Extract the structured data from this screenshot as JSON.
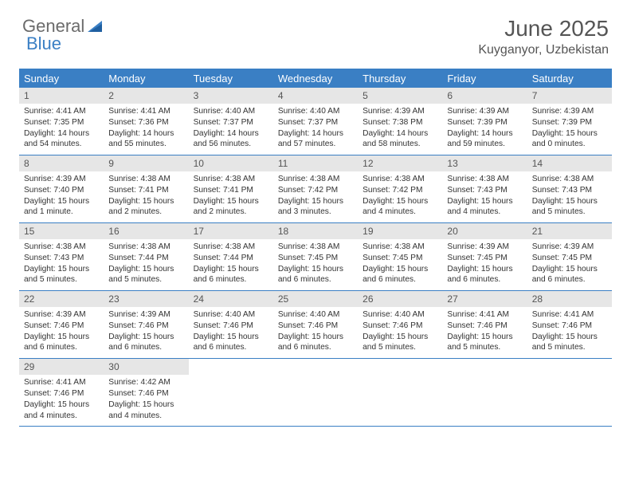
{
  "logo": {
    "text1": "General",
    "text2": "Blue",
    "accent": "#3a7fc4",
    "gray": "#6b6b6b"
  },
  "title": "June 2025",
  "location": "Kuyganyor, Uzbekistan",
  "colors": {
    "header_bg": "#3a7fc4",
    "daynum_bg": "#e6e6e6",
    "border": "#3a7fc4"
  },
  "day_names": [
    "Sunday",
    "Monday",
    "Tuesday",
    "Wednesday",
    "Thursday",
    "Friday",
    "Saturday"
  ],
  "weeks": [
    [
      {
        "n": "1",
        "sr": "Sunrise: 4:41 AM",
        "ss": "Sunset: 7:35 PM",
        "dl": "Daylight: 14 hours and 54 minutes."
      },
      {
        "n": "2",
        "sr": "Sunrise: 4:41 AM",
        "ss": "Sunset: 7:36 PM",
        "dl": "Daylight: 14 hours and 55 minutes."
      },
      {
        "n": "3",
        "sr": "Sunrise: 4:40 AM",
        "ss": "Sunset: 7:37 PM",
        "dl": "Daylight: 14 hours and 56 minutes."
      },
      {
        "n": "4",
        "sr": "Sunrise: 4:40 AM",
        "ss": "Sunset: 7:37 PM",
        "dl": "Daylight: 14 hours and 57 minutes."
      },
      {
        "n": "5",
        "sr": "Sunrise: 4:39 AM",
        "ss": "Sunset: 7:38 PM",
        "dl": "Daylight: 14 hours and 58 minutes."
      },
      {
        "n": "6",
        "sr": "Sunrise: 4:39 AM",
        "ss": "Sunset: 7:39 PM",
        "dl": "Daylight: 14 hours and 59 minutes."
      },
      {
        "n": "7",
        "sr": "Sunrise: 4:39 AM",
        "ss": "Sunset: 7:39 PM",
        "dl": "Daylight: 15 hours and 0 minutes."
      }
    ],
    [
      {
        "n": "8",
        "sr": "Sunrise: 4:39 AM",
        "ss": "Sunset: 7:40 PM",
        "dl": "Daylight: 15 hours and 1 minute."
      },
      {
        "n": "9",
        "sr": "Sunrise: 4:38 AM",
        "ss": "Sunset: 7:41 PM",
        "dl": "Daylight: 15 hours and 2 minutes."
      },
      {
        "n": "10",
        "sr": "Sunrise: 4:38 AM",
        "ss": "Sunset: 7:41 PM",
        "dl": "Daylight: 15 hours and 2 minutes."
      },
      {
        "n": "11",
        "sr": "Sunrise: 4:38 AM",
        "ss": "Sunset: 7:42 PM",
        "dl": "Daylight: 15 hours and 3 minutes."
      },
      {
        "n": "12",
        "sr": "Sunrise: 4:38 AM",
        "ss": "Sunset: 7:42 PM",
        "dl": "Daylight: 15 hours and 4 minutes."
      },
      {
        "n": "13",
        "sr": "Sunrise: 4:38 AM",
        "ss": "Sunset: 7:43 PM",
        "dl": "Daylight: 15 hours and 4 minutes."
      },
      {
        "n": "14",
        "sr": "Sunrise: 4:38 AM",
        "ss": "Sunset: 7:43 PM",
        "dl": "Daylight: 15 hours and 5 minutes."
      }
    ],
    [
      {
        "n": "15",
        "sr": "Sunrise: 4:38 AM",
        "ss": "Sunset: 7:43 PM",
        "dl": "Daylight: 15 hours and 5 minutes."
      },
      {
        "n": "16",
        "sr": "Sunrise: 4:38 AM",
        "ss": "Sunset: 7:44 PM",
        "dl": "Daylight: 15 hours and 5 minutes."
      },
      {
        "n": "17",
        "sr": "Sunrise: 4:38 AM",
        "ss": "Sunset: 7:44 PM",
        "dl": "Daylight: 15 hours and 6 minutes."
      },
      {
        "n": "18",
        "sr": "Sunrise: 4:38 AM",
        "ss": "Sunset: 7:45 PM",
        "dl": "Daylight: 15 hours and 6 minutes."
      },
      {
        "n": "19",
        "sr": "Sunrise: 4:38 AM",
        "ss": "Sunset: 7:45 PM",
        "dl": "Daylight: 15 hours and 6 minutes."
      },
      {
        "n": "20",
        "sr": "Sunrise: 4:39 AM",
        "ss": "Sunset: 7:45 PM",
        "dl": "Daylight: 15 hours and 6 minutes."
      },
      {
        "n": "21",
        "sr": "Sunrise: 4:39 AM",
        "ss": "Sunset: 7:45 PM",
        "dl": "Daylight: 15 hours and 6 minutes."
      }
    ],
    [
      {
        "n": "22",
        "sr": "Sunrise: 4:39 AM",
        "ss": "Sunset: 7:46 PM",
        "dl": "Daylight: 15 hours and 6 minutes."
      },
      {
        "n": "23",
        "sr": "Sunrise: 4:39 AM",
        "ss": "Sunset: 7:46 PM",
        "dl": "Daylight: 15 hours and 6 minutes."
      },
      {
        "n": "24",
        "sr": "Sunrise: 4:40 AM",
        "ss": "Sunset: 7:46 PM",
        "dl": "Daylight: 15 hours and 6 minutes."
      },
      {
        "n": "25",
        "sr": "Sunrise: 4:40 AM",
        "ss": "Sunset: 7:46 PM",
        "dl": "Daylight: 15 hours and 6 minutes."
      },
      {
        "n": "26",
        "sr": "Sunrise: 4:40 AM",
        "ss": "Sunset: 7:46 PM",
        "dl": "Daylight: 15 hours and 5 minutes."
      },
      {
        "n": "27",
        "sr": "Sunrise: 4:41 AM",
        "ss": "Sunset: 7:46 PM",
        "dl": "Daylight: 15 hours and 5 minutes."
      },
      {
        "n": "28",
        "sr": "Sunrise: 4:41 AM",
        "ss": "Sunset: 7:46 PM",
        "dl": "Daylight: 15 hours and 5 minutes."
      }
    ],
    [
      {
        "n": "29",
        "sr": "Sunrise: 4:41 AM",
        "ss": "Sunset: 7:46 PM",
        "dl": "Daylight: 15 hours and 4 minutes."
      },
      {
        "n": "30",
        "sr": "Sunrise: 4:42 AM",
        "ss": "Sunset: 7:46 PM",
        "dl": "Daylight: 15 hours and 4 minutes."
      },
      null,
      null,
      null,
      null,
      null
    ]
  ]
}
